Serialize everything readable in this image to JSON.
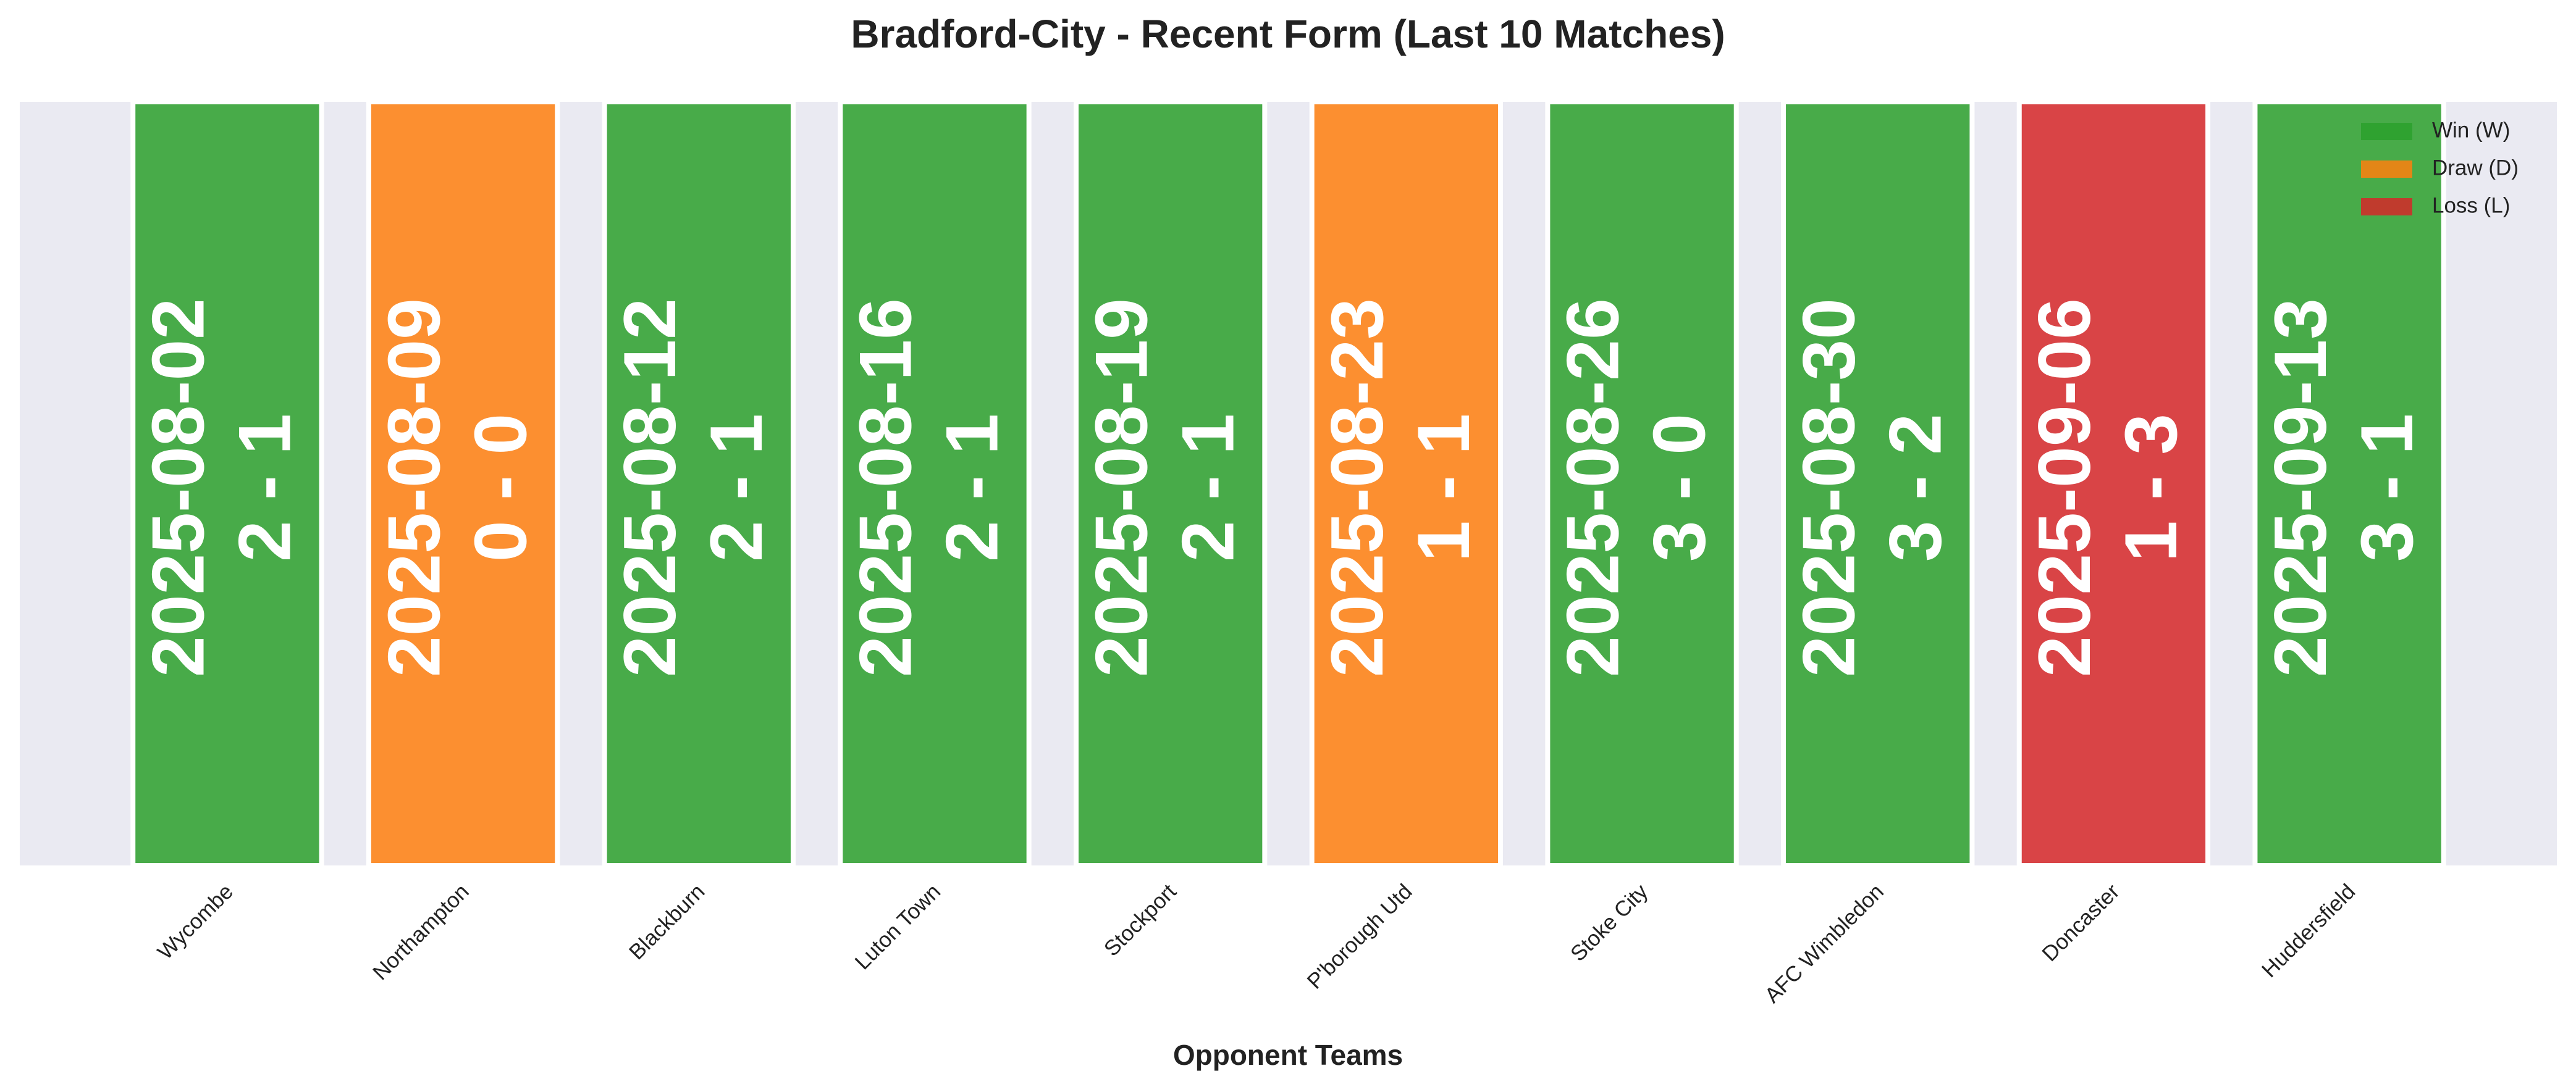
{
  "chart_data": {
    "type": "form",
    "title": "Bradford-City - Recent Form (Last 10 Matches)",
    "x_label": "Opponent Teams",
    "categories": [
      "Wycombe",
      "Northampton",
      "Blackburn",
      "Luton Town",
      "Stockport",
      "P'borough Utd",
      "Stoke City",
      "AFC Wimbledon",
      "Doncaster",
      "Huddersfield"
    ],
    "dates": [
      "2025-08-02",
      "2025-08-09",
      "2025-08-12",
      "2025-08-16",
      "2025-08-19",
      "2025-08-23",
      "2025-08-26",
      "2025-08-30",
      "2025-09-06",
      "2025-09-13"
    ],
    "scores": [
      "2 - 1",
      "0 - 0",
      "2 - 1",
      "2 - 1",
      "2 - 1",
      "1 - 1",
      "3 - 0",
      "3 - 2",
      "1 - 3",
      "3 - 1"
    ],
    "colors": [
      "#2ca02c",
      "#ff7f0e",
      "#2ca02c",
      "#2ca02c",
      "#2ca02c",
      "#ff7f0e",
      "#2ca02c",
      "#2ca02c",
      "#d62728",
      "#2ca02c"
    ],
    "legend": [
      {
        "name": "Win (W)",
        "color": "#2ca02c"
      },
      {
        "name": "Draw (D)",
        "color": "#ff7f0e"
      },
      {
        "name": "Loss (L)",
        "color": "#d62728"
      }
    ],
    "legend_position": "upper right"
  }
}
